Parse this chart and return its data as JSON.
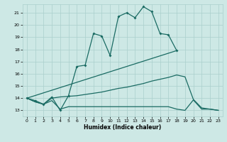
{
  "xlabel": "Humidex (Indice chaleur)",
  "background_color": "#cde8e5",
  "grid_color": "#aacfcc",
  "line_color": "#1a6b63",
  "ylim": [
    12.5,
    21.7
  ],
  "xlim": [
    -0.5,
    23.5
  ],
  "yticks": [
    13,
    14,
    15,
    16,
    17,
    18,
    19,
    20,
    21
  ],
  "xticks": [
    0,
    1,
    2,
    3,
    4,
    5,
    6,
    7,
    8,
    9,
    10,
    11,
    12,
    13,
    14,
    15,
    16,
    17,
    18,
    19,
    20,
    21,
    22,
    23
  ],
  "line1_x": [
    0,
    1,
    2,
    3,
    4,
    5,
    6,
    7,
    8,
    9,
    10,
    11,
    12,
    13,
    14,
    15,
    16,
    17,
    18
  ],
  "line1_y": [
    14.0,
    13.8,
    13.5,
    14.1,
    13.0,
    14.2,
    16.6,
    16.7,
    19.3,
    19.1,
    17.5,
    20.7,
    21.0,
    20.6,
    21.5,
    21.1,
    19.3,
    19.2,
    17.9
  ],
  "line2_x": [
    0,
    18
  ],
  "line2_y": [
    14.0,
    17.9
  ],
  "line3_x": [
    0,
    1,
    2,
    3,
    4,
    5,
    6,
    7,
    8,
    9,
    10,
    11,
    12,
    13,
    14,
    15,
    16,
    17,
    18,
    19,
    20,
    21,
    22,
    23
  ],
  "line3_y": [
    14.0,
    13.7,
    13.5,
    14.0,
    14.1,
    14.15,
    14.2,
    14.3,
    14.4,
    14.5,
    14.65,
    14.8,
    14.9,
    15.05,
    15.2,
    15.4,
    15.55,
    15.7,
    15.9,
    15.75,
    13.9,
    13.2,
    13.1,
    13.0
  ],
  "line4_x": [
    0,
    1,
    2,
    3,
    4,
    5,
    6,
    7,
    8,
    9,
    10,
    11,
    12,
    13,
    14,
    15,
    16,
    17,
    18,
    19,
    20,
    21,
    22,
    23
  ],
  "line4_y": [
    14.0,
    13.7,
    13.5,
    13.8,
    13.1,
    13.3,
    13.3,
    13.3,
    13.3,
    13.3,
    13.3,
    13.3,
    13.3,
    13.3,
    13.3,
    13.3,
    13.3,
    13.3,
    13.1,
    13.0,
    13.85,
    13.1,
    13.1,
    13.0
  ]
}
